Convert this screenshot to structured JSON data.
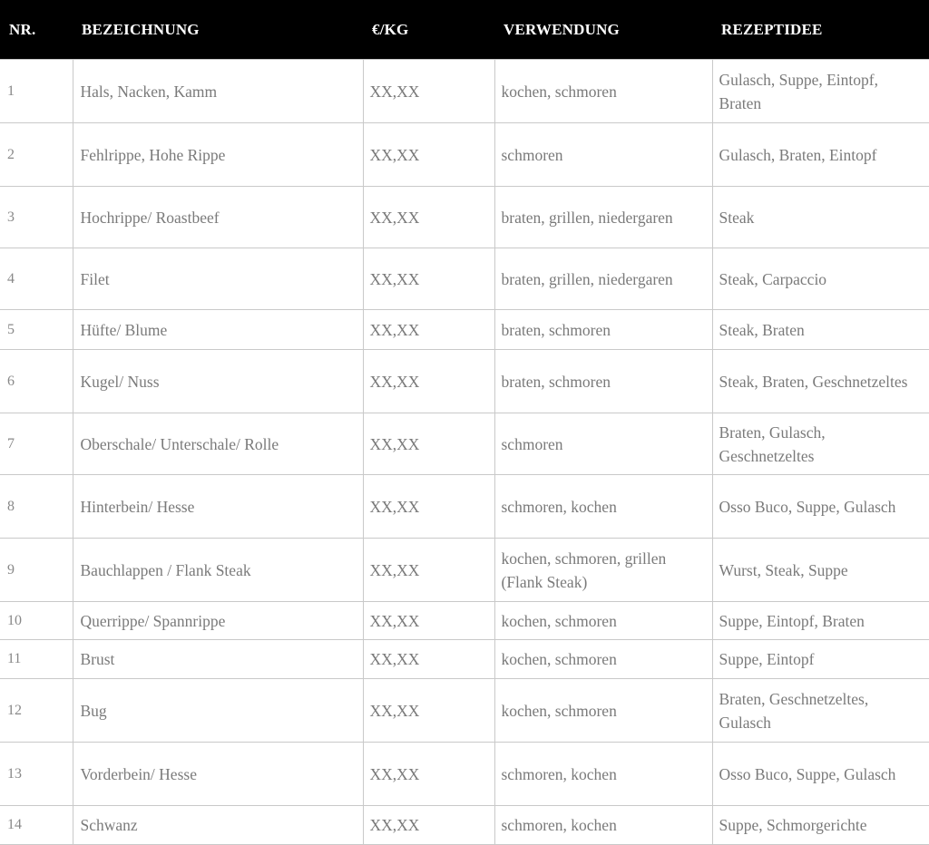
{
  "table": {
    "headers": [
      "NR.",
      "BEZEICHNUNG",
      "€/KG",
      "VERWENDUNG",
      "REZEPTIDEE"
    ],
    "rows": [
      [
        "1",
        "Hals, Nacken, Kamm",
        "XX,XX",
        "kochen, schmoren",
        "Gulasch, Suppe, Eintopf, Braten"
      ],
      [
        "2",
        "Fehlrippe, Hohe Rippe",
        "XX,XX",
        "schmoren",
        "Gulasch, Braten, Eintopf"
      ],
      [
        "3",
        "Hochrippe/ Roastbeef",
        "XX,XX",
        "braten, grillen, niedergaren",
        "Steak"
      ],
      [
        "4",
        "Filet",
        "XX,XX",
        "braten, grillen, niedergaren",
        "Steak, Carpaccio"
      ],
      [
        "5",
        "Hüfte/ Blume",
        "XX,XX",
        "braten, schmoren",
        "Steak, Braten"
      ],
      [
        "6",
        "Kugel/ Nuss",
        "XX,XX",
        "braten, schmoren",
        "Steak, Braten, Geschnetzeltes"
      ],
      [
        "7",
        "Oberschale/ Unterschale/ Rolle",
        "XX,XX",
        "schmoren",
        "Braten, Gulasch, Geschnetzeltes"
      ],
      [
        "8",
        "Hinterbein/ Hesse",
        "XX,XX",
        "schmoren, kochen",
        "Osso Buco, Suppe, Gulasch"
      ],
      [
        "9",
        "Bauchlappen / Flank Steak",
        "XX,XX",
        "kochen, schmoren, grillen (Flank Steak)",
        "Wurst, Steak, Suppe"
      ],
      [
        "10",
        "Querrippe/ Spannrippe",
        "XX,XX",
        "kochen, schmoren",
        "Suppe, Eintopf, Braten"
      ],
      [
        "11",
        "Brust",
        "XX,XX",
        "kochen, schmoren",
        "Suppe, Eintopf"
      ],
      [
        "12",
        "Bug",
        "XX,XX",
        "kochen, schmoren",
        "Braten, Geschnetzeltes, Gulasch"
      ],
      [
        "13",
        "Vorderbein/ Hesse",
        "XX,XX",
        "schmoren, kochen",
        "Osso Buco, Suppe, Gulasch"
      ],
      [
        "14",
        "Schwanz",
        "XX,XX",
        "schmoren, kochen",
        "Suppe, Schmorgerichte"
      ]
    ]
  }
}
